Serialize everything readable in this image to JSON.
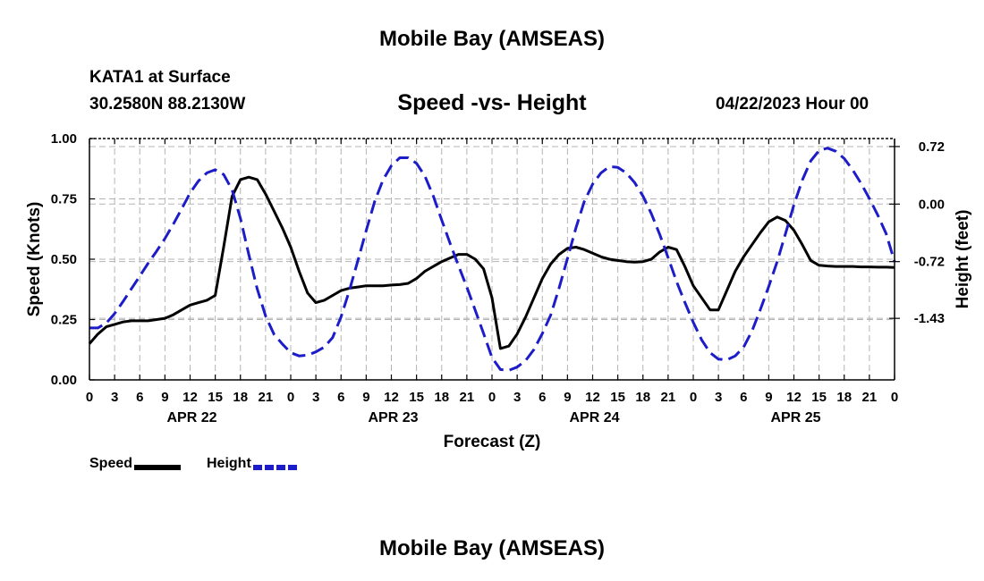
{
  "header": {
    "title": "Mobile Bay (AMSEAS)",
    "station": "KATA1 at Surface",
    "coords": "30.2580N  88.2130W",
    "subtitle": "Speed -vs- Height",
    "datetime": "04/22/2023 Hour 00"
  },
  "footer": {
    "title": "Mobile Bay (AMSEAS)"
  },
  "legend": {
    "speed_label": "Speed",
    "height_label": "Height",
    "speed_color": "#000000",
    "height_color": "#1c1cc8"
  },
  "chart_data": {
    "type": "line",
    "title": "Speed -vs- Height",
    "xlabel": "Forecast (Z)",
    "ylabel": "Speed (Knots)",
    "y2label": "Height (feet)",
    "xlim": [
      0,
      96
    ],
    "ylim": [
      0,
      1
    ],
    "y2lim": [
      -2.2,
      0.82
    ],
    "x_ticks": [
      0,
      3,
      6,
      9,
      12,
      15,
      18,
      21,
      24,
      27,
      30,
      33,
      36,
      39,
      42,
      45,
      48,
      51,
      54,
      57,
      60,
      63,
      66,
      69,
      72,
      75,
      78,
      81,
      84,
      87,
      90,
      93,
      96
    ],
    "x_tick_labels": [
      "0",
      "3",
      "6",
      "9",
      "12",
      "15",
      "18",
      "21",
      "0",
      "3",
      "6",
      "9",
      "12",
      "15",
      "18",
      "21",
      "0",
      "3",
      "6",
      "9",
      "12",
      "15",
      "18",
      "21",
      "0",
      "3",
      "6",
      "9",
      "12",
      "15",
      "18",
      "21",
      "0"
    ],
    "day_labels": [
      {
        "x": 12,
        "label": "APR 22"
      },
      {
        "x": 36,
        "label": "APR 23"
      },
      {
        "x": 60,
        "label": "APR 24"
      },
      {
        "x": 84,
        "label": "APR 25"
      }
    ],
    "y_ticks": [
      0,
      0.25,
      0.5,
      0.75,
      1.0
    ],
    "y_tick_labels": [
      "0.00",
      "0.25",
      "0.50",
      "0.75",
      "1.00"
    ],
    "y2_ticks": [
      0.72,
      0.0,
      -0.72,
      -1.43
    ],
    "y2_tick_labels": [
      "0.72",
      "0.00",
      "-0.72",
      "-1.43"
    ],
    "series": [
      {
        "name": "Speed",
        "axis": "left",
        "style": "solid",
        "x": [
          0,
          1,
          2,
          3,
          4,
          5,
          6,
          7,
          8,
          9,
          10,
          11,
          12,
          13,
          14,
          15,
          16,
          17,
          18,
          19,
          20,
          21,
          22,
          23,
          24,
          25,
          26,
          27,
          28,
          29,
          30,
          31,
          32,
          33,
          34,
          35,
          36,
          37,
          38,
          39,
          40,
          41,
          42,
          43,
          44,
          45,
          46,
          47,
          48,
          49,
          50,
          51,
          52,
          53,
          54,
          55,
          56,
          57,
          58,
          59,
          60,
          61,
          62,
          63,
          64,
          65,
          66,
          67,
          68,
          69,
          70,
          71,
          72,
          73,
          74,
          75,
          76,
          77,
          78,
          79,
          80,
          81,
          82,
          83,
          84,
          85,
          86,
          87,
          88,
          89,
          90,
          91,
          92,
          93,
          94,
          95,
          96
        ],
        "values": [
          0.15,
          0.19,
          0.22,
          0.23,
          0.24,
          0.245,
          0.245,
          0.245,
          0.25,
          0.255,
          0.27,
          0.29,
          0.31,
          0.32,
          0.33,
          0.35,
          0.55,
          0.76,
          0.83,
          0.84,
          0.83,
          0.77,
          0.7,
          0.63,
          0.55,
          0.45,
          0.36,
          0.32,
          0.33,
          0.35,
          0.37,
          0.38,
          0.385,
          0.39,
          0.39,
          0.39,
          0.393,
          0.395,
          0.4,
          0.42,
          0.45,
          0.47,
          0.49,
          0.505,
          0.52,
          0.52,
          0.5,
          0.46,
          0.34,
          0.13,
          0.14,
          0.19,
          0.26,
          0.34,
          0.42,
          0.48,
          0.52,
          0.545,
          0.55,
          0.54,
          0.525,
          0.51,
          0.5,
          0.495,
          0.49,
          0.488,
          0.49,
          0.5,
          0.53,
          0.55,
          0.54,
          0.47,
          0.39,
          0.34,
          0.29,
          0.29,
          0.37,
          0.45,
          0.51,
          0.56,
          0.61,
          0.655,
          0.675,
          0.66,
          0.62,
          0.56,
          0.495,
          0.475,
          0.472,
          0.47,
          0.47,
          0.47,
          0.468,
          0.468,
          0.467,
          0.467,
          0.466
        ]
      },
      {
        "name": "Height",
        "axis": "right",
        "style": "dashed",
        "x": [
          0,
          1,
          2,
          3,
          4,
          5,
          6,
          7,
          8,
          9,
          10,
          11,
          12,
          13,
          14,
          15,
          16,
          17,
          18,
          19,
          20,
          21,
          22,
          23,
          24,
          25,
          26,
          27,
          28,
          29,
          30,
          31,
          32,
          33,
          34,
          35,
          36,
          37,
          38,
          39,
          40,
          41,
          42,
          43,
          44,
          45,
          46,
          47,
          48,
          49,
          50,
          51,
          52,
          53,
          54,
          55,
          56,
          57,
          58,
          59,
          60,
          61,
          62,
          63,
          64,
          65,
          66,
          67,
          68,
          69,
          70,
          71,
          72,
          73,
          74,
          75,
          76,
          77,
          78,
          79,
          80,
          81,
          82,
          83,
          84,
          85,
          86,
          87,
          88,
          89,
          90,
          91,
          92,
          93,
          94,
          95,
          96
        ],
        "values": [
          -1.55,
          -1.55,
          -1.49,
          -1.37,
          -1.22,
          -1.06,
          -0.9,
          -0.74,
          -0.59,
          -0.43,
          -0.25,
          -0.06,
          0.14,
          0.29,
          0.39,
          0.43,
          0.37,
          0.18,
          -0.18,
          -0.63,
          -1.06,
          -1.4,
          -1.63,
          -1.75,
          -1.86,
          -1.9,
          -1.89,
          -1.85,
          -1.79,
          -1.67,
          -1.41,
          -1.08,
          -0.71,
          -0.33,
          0.03,
          0.3,
          0.48,
          0.58,
          0.58,
          0.51,
          0.35,
          0.1,
          -0.2,
          -0.49,
          -0.77,
          -1.04,
          -1.33,
          -1.62,
          -1.92,
          -2.07,
          -2.08,
          -2.04,
          -1.96,
          -1.82,
          -1.62,
          -1.39,
          -1.05,
          -0.68,
          -0.3,
          0.03,
          0.25,
          0.39,
          0.47,
          0.46,
          0.39,
          0.27,
          0.1,
          -0.12,
          -0.38,
          -0.67,
          -0.97,
          -1.23,
          -1.48,
          -1.7,
          -1.86,
          -1.94,
          -1.95,
          -1.9,
          -1.79,
          -1.59,
          -1.32,
          -1.03,
          -0.72,
          -0.37,
          -0.01,
          0.3,
          0.54,
          0.67,
          0.7,
          0.66,
          0.57,
          0.43,
          0.26,
          0.07,
          -0.14,
          -0.37,
          -0.72
        ]
      }
    ]
  }
}
